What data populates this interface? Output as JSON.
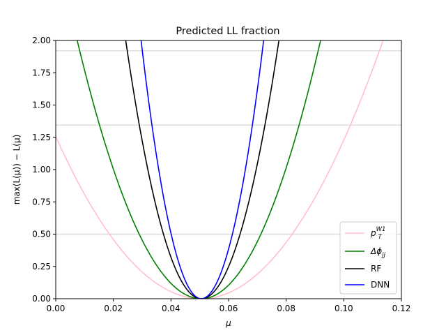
{
  "chart_data": {
    "type": "line",
    "title": "Predicted LL fraction",
    "xlabel": "μ",
    "ylabel": "max(L(μ)) − L(μ)",
    "xlim": [
      0.0,
      0.12
    ],
    "ylim": [
      0.0,
      2.0
    ],
    "xticks": [
      "0.00",
      "0.02",
      "0.04",
      "0.06",
      "0.08",
      "0.10",
      "0.12"
    ],
    "yticks": [
      "0.00",
      "0.25",
      "0.50",
      "0.75",
      "1.00",
      "1.25",
      "1.50",
      "1.75",
      "2.00"
    ],
    "grid": false,
    "reference_lines": [
      0.5,
      1.345,
      1.92
    ],
    "legend_position": "lower-right",
    "series": [
      {
        "name": "p_T^W1",
        "label_main": "p",
        "label_sub": "T",
        "label_sup": "W1",
        "color": "#ffc0cb",
        "min_x": 0.0505,
        "points": [
          [
            0.0,
            1.26
          ],
          [
            0.02,
            0.45
          ],
          [
            0.0505,
            0.0
          ],
          [
            0.08,
            0.42
          ],
          [
            0.1,
            1.17
          ],
          [
            0.113,
            2.0
          ]
        ]
      },
      {
        "name": "Δφ_jj",
        "label_main": "Δϕ",
        "label_sub": "jj",
        "label_sup": "",
        "color": "#008000",
        "min_x": 0.0505,
        "points": [
          [
            0.0078,
            2.0
          ],
          [
            0.02,
            0.94
          ],
          [
            0.0505,
            0.0
          ],
          [
            0.08,
            0.88
          ],
          [
            0.0912,
            2.0
          ]
        ]
      },
      {
        "name": "RF",
        "label_main": "RF",
        "label_sub": "",
        "label_sup": "",
        "color": "#000000",
        "min_x": 0.0505,
        "points": [
          [
            0.0243,
            2.0
          ],
          [
            0.04,
            0.32
          ],
          [
            0.0505,
            0.0
          ],
          [
            0.06,
            0.28
          ],
          [
            0.0775,
            2.0
          ]
        ]
      },
      {
        "name": "DNN",
        "label_main": "DNN",
        "label_sub": "",
        "label_sup": "",
        "color": "#0000ff",
        "min_x": 0.0505,
        "points": [
          [
            0.0297,
            2.0
          ],
          [
            0.04,
            0.46
          ],
          [
            0.0505,
            0.0
          ],
          [
            0.06,
            0.42
          ],
          [
            0.0722,
            2.0
          ]
        ]
      }
    ]
  }
}
